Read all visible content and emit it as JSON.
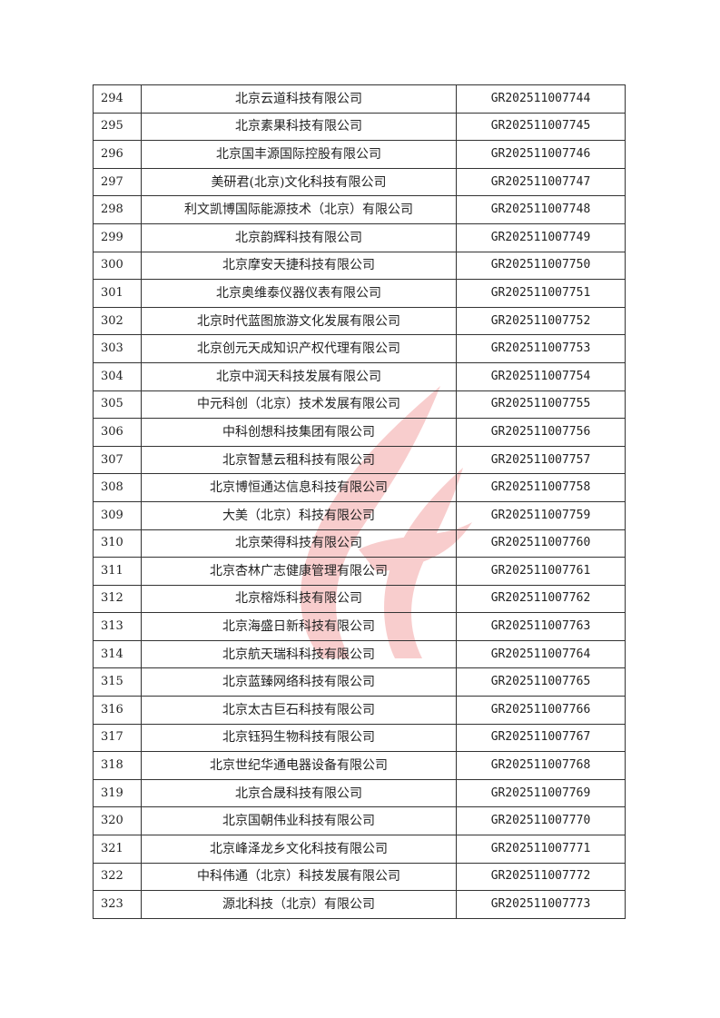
{
  "watermark": {
    "icon": "red-flame-logo-watermark",
    "color": "#e02020"
  },
  "table": {
    "rows": [
      {
        "num": "294",
        "name": "北京云道科技有限公司",
        "code": "GR202511007744"
      },
      {
        "num": "295",
        "name": "北京素果科技有限公司",
        "code": "GR202511007745"
      },
      {
        "num": "296",
        "name": "北京国丰源国际控股有限公司",
        "code": "GR202511007746"
      },
      {
        "num": "297",
        "name": "美研君(北京)文化科技有限公司",
        "code": "GR202511007747"
      },
      {
        "num": "298",
        "name": "利文凯博国际能源技术（北京）有限公司",
        "code": "GR202511007748"
      },
      {
        "num": "299",
        "name": "北京韵辉科技有限公司",
        "code": "GR202511007749"
      },
      {
        "num": "300",
        "name": "北京摩安天捷科技有限公司",
        "code": "GR202511007750"
      },
      {
        "num": "301",
        "name": "北京奥维泰仪器仪表有限公司",
        "code": "GR202511007751"
      },
      {
        "num": "302",
        "name": "北京时代蓝图旅游文化发展有限公司",
        "code": "GR202511007752"
      },
      {
        "num": "303",
        "name": "北京创元天成知识产权代理有限公司",
        "code": "GR202511007753"
      },
      {
        "num": "304",
        "name": "北京中润天科技发展有限公司",
        "code": "GR202511007754"
      },
      {
        "num": "305",
        "name": "中元科创（北京）技术发展有限公司",
        "code": "GR202511007755"
      },
      {
        "num": "306",
        "name": "中科创想科技集团有限公司",
        "code": "GR202511007756"
      },
      {
        "num": "307",
        "name": "北京智慧云租科技有限公司",
        "code": "GR202511007757"
      },
      {
        "num": "308",
        "name": "北京博恒通达信息科技有限公司",
        "code": "GR202511007758"
      },
      {
        "num": "309",
        "name": "大美（北京）科技有限公司",
        "code": "GR202511007759"
      },
      {
        "num": "310",
        "name": "北京荣得科技有限公司",
        "code": "GR202511007760"
      },
      {
        "num": "311",
        "name": "北京杏林广志健康管理有限公司",
        "code": "GR202511007761"
      },
      {
        "num": "312",
        "name": "北京榕烁科技有限公司",
        "code": "GR202511007762"
      },
      {
        "num": "313",
        "name": "北京海盛日新科技有限公司",
        "code": "GR202511007763"
      },
      {
        "num": "314",
        "name": "北京航天瑞科科技有限公司",
        "code": "GR202511007764"
      },
      {
        "num": "315",
        "name": "北京蓝臻网络科技有限公司",
        "code": "GR202511007765"
      },
      {
        "num": "316",
        "name": "北京太古巨石科技有限公司",
        "code": "GR202511007766"
      },
      {
        "num": "317",
        "name": "北京钰犸生物科技有限公司",
        "code": "GR202511007767"
      },
      {
        "num": "318",
        "name": "北京世纪华通电器设备有限公司",
        "code": "GR202511007768"
      },
      {
        "num": "319",
        "name": "北京合晟科技有限公司",
        "code": "GR202511007769"
      },
      {
        "num": "320",
        "name": "北京国朝伟业科技有限公司",
        "code": "GR202511007770"
      },
      {
        "num": "321",
        "name": "北京峰泽龙乡文化科技有限公司",
        "code": "GR202511007771"
      },
      {
        "num": "322",
        "name": "中科伟通（北京）科技发展有限公司",
        "code": "GR202511007772"
      },
      {
        "num": "323",
        "name": "源北科技（北京）有限公司",
        "code": "GR202511007773"
      }
    ]
  }
}
